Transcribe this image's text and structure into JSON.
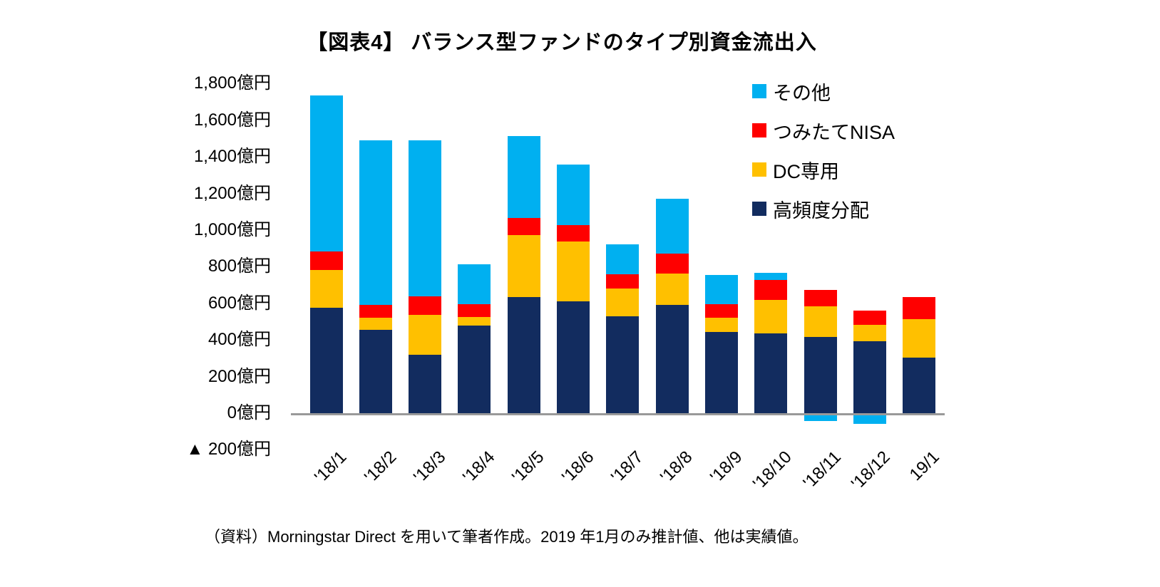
{
  "title": "【図表4】 バランス型ファンドのタイプ別資金流出入",
  "source_note": "（資料）Morningstar Direct を用いて筆者作成。2019 年1月のみ推計値、他は実績値。",
  "colors": {
    "other": "#00B0F0",
    "tsumitate_nisa": "#FF0000",
    "dc_only": "#FFC000",
    "high_freq_dist": "#122C5F",
    "axis_line": "#999999"
  },
  "chart_data": {
    "type": "bar",
    "stacked": true,
    "title": "【図表4】 バランス型ファンドのタイプ別資金流出入",
    "unit": "億円",
    "ylim": [
      -200,
      1800
    ],
    "grid": false,
    "legend_position": "top-right",
    "categories": [
      "'18/1",
      "'18/2",
      "'18/3",
      "'18/4",
      "'18/5",
      "'18/6",
      "'18/7",
      "'18/8",
      "'18/9",
      "'18/10",
      "'18/11",
      "'18/12",
      "19/1"
    ],
    "series": [
      {
        "key": "high_freq_dist",
        "name": "高頻度分配",
        "color": "#122C5F",
        "values": [
          575,
          455,
          319,
          477,
          633,
          611,
          531,
          590,
          442,
          436,
          418,
          394,
          303
        ]
      },
      {
        "key": "dc_only",
        "name": "DC専用",
        "color": "#FFC000",
        "values": [
          208,
          65,
          218,
          50,
          339,
          326,
          149,
          174,
          78,
          182,
          165,
          89,
          211
        ]
      },
      {
        "key": "tsumitate_nisa",
        "name": "つみたてNISA",
        "color": "#FF0000",
        "values": [
          102,
          72,
          100,
          67,
          95,
          90,
          77,
          108,
          74,
          108,
          91,
          78,
          121
        ]
      },
      {
        "key": "other",
        "name": "その他",
        "color": "#00B0F0",
        "values": [
          849,
          898,
          853,
          219,
          446,
          330,
          164,
          299,
          160,
          42,
          -30,
          -45,
          0
        ]
      }
    ],
    "totals_positive": [
      1734,
      1490,
      1490,
      813,
      1513,
      1357,
      921,
      1171,
      754,
      768,
      674,
      561,
      635
    ],
    "y_axis": {
      "ticks": [
        {
          "value": 1800,
          "label": "1,800億円"
        },
        {
          "value": 1600,
          "label": "1,600億円"
        },
        {
          "value": 1400,
          "label": "1,400億円"
        },
        {
          "value": 1200,
          "label": "1,200億円"
        },
        {
          "value": 1000,
          "label": "1,000億円"
        },
        {
          "value": 800,
          "label": "800億円"
        },
        {
          "value": 600,
          "label": "600億円"
        },
        {
          "value": 400,
          "label": "400億円"
        },
        {
          "value": 200,
          "label": "200億円"
        },
        {
          "value": 0,
          "label": "0億円"
        },
        {
          "value": -200,
          "label": "▲ 200億円"
        }
      ]
    },
    "legend": [
      {
        "key": "other",
        "label": "その他",
        "color": "#00B0F0"
      },
      {
        "key": "tsumitate_nisa",
        "label": "つみたてNISA",
        "color": "#FF0000"
      },
      {
        "key": "dc_only",
        "label": "DC専用",
        "color": "#FFC000"
      },
      {
        "key": "high_freq_dist",
        "label": "高頻度分配",
        "color": "#122C5F"
      }
    ]
  }
}
